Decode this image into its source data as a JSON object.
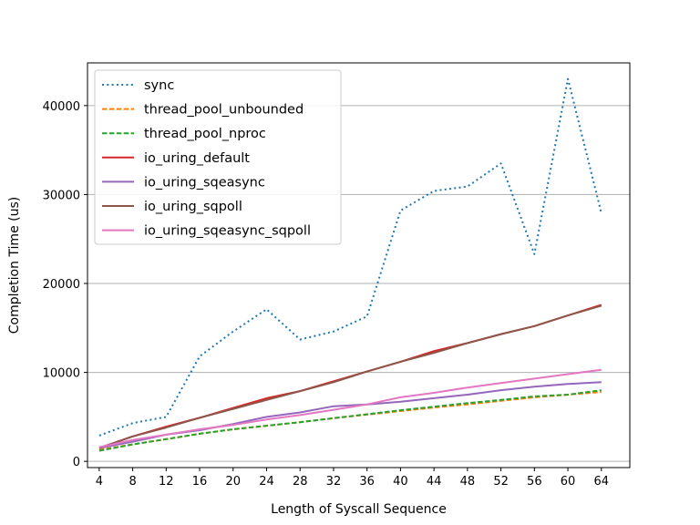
{
  "chart_data": {
    "type": "line",
    "title": "",
    "xlabel": "Length of Syscall Sequence",
    "ylabel": "Completion Time (us)",
    "x": [
      4,
      8,
      12,
      16,
      20,
      24,
      28,
      32,
      36,
      40,
      44,
      48,
      52,
      56,
      60,
      64
    ],
    "x_ticks": [
      "4",
      "8",
      "12",
      "16",
      "20",
      "24",
      "28",
      "32",
      "36",
      "40",
      "44",
      "48",
      "52",
      "56",
      "60",
      "64"
    ],
    "y_ticks": [
      0,
      10000,
      20000,
      30000,
      40000
    ],
    "y_tick_labels": [
      "0",
      "10000",
      "20000",
      "30000",
      "40000"
    ],
    "xlim": [
      2.6,
      67.4
    ],
    "ylim": [
      -700,
      44800
    ],
    "grid": "y",
    "legend_position": "upper-left",
    "series": [
      {
        "name": "sync",
        "style": "dotted",
        "color": "#1f77b4",
        "values": [
          2900,
          4300,
          5000,
          11800,
          14600,
          17100,
          13700,
          14600,
          16300,
          28200,
          30400,
          30900,
          33500,
          23300,
          43000,
          27900
        ]
      },
      {
        "name": "thread_pool_unbounded",
        "style": "dashed",
        "color": "#ff7f0e",
        "values": [
          1300,
          1900,
          2500,
          3100,
          3600,
          4000,
          4400,
          4850,
          5250,
          5650,
          6050,
          6400,
          6800,
          7200,
          7500,
          7800
        ]
      },
      {
        "name": "thread_pool_nproc",
        "style": "dashed",
        "color": "#2ca02c",
        "values": [
          1200,
          1900,
          2500,
          3100,
          3600,
          4000,
          4400,
          4850,
          5300,
          5750,
          6150,
          6550,
          6900,
          7300,
          7500,
          8000
        ]
      },
      {
        "name": "io_uring_default",
        "style": "solid",
        "color": "#d62728",
        "values": [
          1500,
          2800,
          3900,
          4900,
          6000,
          7100,
          7900,
          9000,
          10100,
          11200,
          12400,
          13300,
          14300,
          15200,
          16400,
          17600
        ]
      },
      {
        "name": "io_uring_sqeasync",
        "style": "solid",
        "color": "#9467bd",
        "values": [
          1500,
          2200,
          3000,
          3500,
          4200,
          5000,
          5500,
          6200,
          6400,
          6700,
          7100,
          7500,
          8000,
          8400,
          8700,
          8900
        ]
      },
      {
        "name": "io_uring_sqpoll",
        "style": "solid",
        "color": "#8c564b",
        "values": [
          1500,
          2800,
          3800,
          4900,
          5900,
          6900,
          7900,
          8900,
          10100,
          11200,
          12200,
          13300,
          14300,
          15200,
          16400,
          17500
        ]
      },
      {
        "name": "io_uring_sqeasync_sqpoll",
        "style": "solid",
        "color": "#e377c2",
        "values": [
          1600,
          2400,
          3000,
          3600,
          4100,
          4700,
          5200,
          5800,
          6400,
          7200,
          7700,
          8300,
          8800,
          9300,
          9800,
          10300
        ]
      }
    ]
  }
}
